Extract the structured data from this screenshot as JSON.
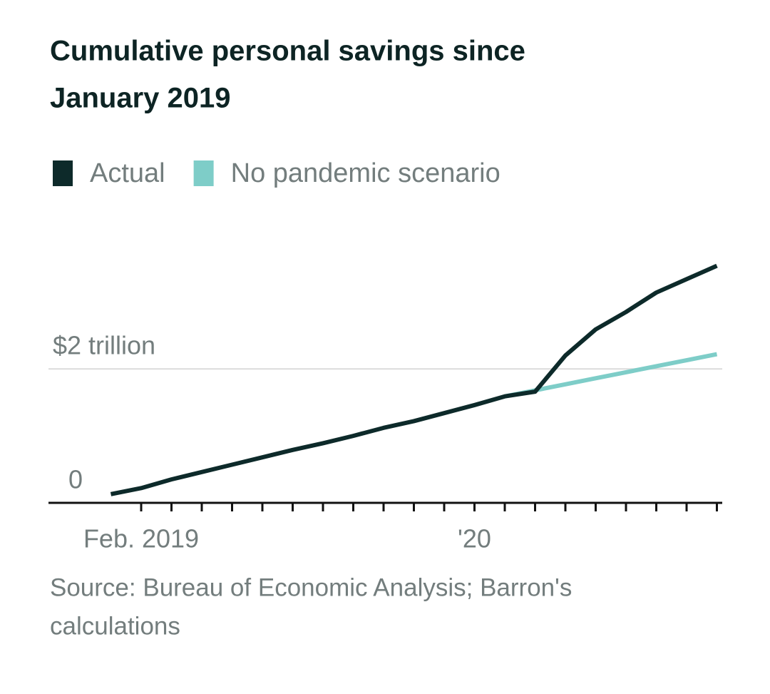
{
  "chart_data": {
    "type": "line",
    "title": [
      "Cumulative personal savings since",
      "January 2019"
    ],
    "categories": [
      null,
      "Feb. 2019",
      null,
      null,
      null,
      null,
      null,
      null,
      null,
      null,
      null,
      null,
      "'20",
      null,
      null,
      null,
      null,
      null,
      null,
      null,
      null
    ],
    "series": [
      {
        "name": "Actual",
        "color": "#0d2a2a",
        "values": [
          0.13,
          0.22,
          0.35,
          0.46,
          0.57,
          0.68,
          0.79,
          0.89,
          1.0,
          1.12,
          1.22,
          1.34,
          1.46,
          1.59,
          1.66,
          2.2,
          2.59,
          2.85,
          3.14,
          3.34,
          3.54
        ]
      },
      {
        "name": "No pandemic scenario",
        "color": "#7ecdc8",
        "values": [
          null,
          null,
          null,
          null,
          null,
          null,
          null,
          null,
          null,
          null,
          null,
          null,
          null,
          1.59,
          1.68,
          1.77,
          1.86,
          1.95,
          2.04,
          2.13,
          2.22
        ]
      }
    ],
    "ylim": [
      0,
      3.6
    ],
    "yticks": [
      0,
      {
        "value": 2,
        "label": "$2 trillion"
      }
    ],
    "grid": true,
    "source": [
      "Source: Bureau of Economic Analysis; Barron's",
      "calculations"
    ]
  }
}
